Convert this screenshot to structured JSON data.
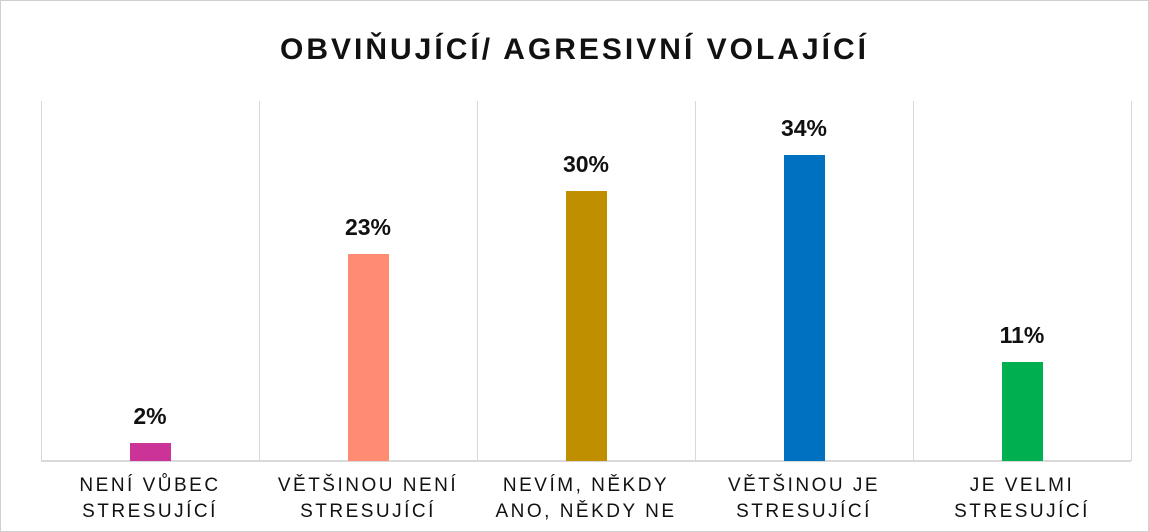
{
  "chart_data": {
    "type": "bar",
    "title": "OBVIŇUJÍCÍ/ AGRESIVNÍ VOLAJÍCÍ",
    "categories": [
      "NENÍ VŮBEC STRESUJÍCÍ",
      "VĚTŠINOU NENÍ STRESUJÍCÍ",
      "NEVÍM, NĚKDY ANO, NĚKDY NE",
      "VĚTŠINOU JE STRESUJÍCÍ",
      "JE VELMI STRESUJÍCÍ"
    ],
    "values": [
      2,
      23,
      30,
      34,
      11
    ],
    "value_labels": [
      "2%",
      "23%",
      "30%",
      "34%",
      "11%"
    ],
    "colors": [
      "#cc3399",
      "#ff8b73",
      "#bf8f00",
      "#0070c0",
      "#00b050"
    ],
    "ylim": [
      0,
      40
    ]
  }
}
